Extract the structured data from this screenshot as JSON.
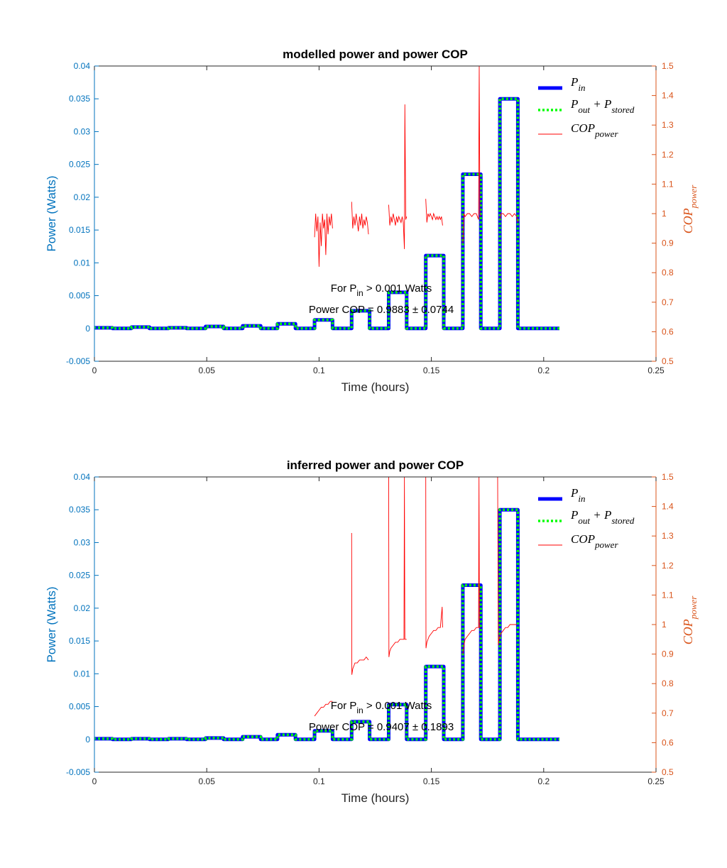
{
  "figure": {
    "colors": {
      "p_in": "#0000FF",
      "p_out_stored": "#00FF00",
      "cop": "#FF0000",
      "left_axis": "#0072BD",
      "right_axis": "#D95319",
      "x_axis": "#262626"
    }
  },
  "chart_data": [
    {
      "type": "line",
      "title": "modelled power and power COP",
      "xlabel": "Time (hours)",
      "ylabel_left": "Power (Watts)",
      "ylabel_right": {
        "base": "COP",
        "sub": "power"
      },
      "xlim": [
        0,
        0.25
      ],
      "ylim_left": [
        -0.005,
        0.04
      ],
      "ylim_right": [
        0.5,
        1.5
      ],
      "x_ticks": [
        "0",
        "0.05",
        "0.1",
        "0.15",
        "0.2",
        "0.25"
      ],
      "y_left_ticks": [
        "-0.005",
        "0",
        "0.005",
        "0.01",
        "0.015",
        "0.02",
        "0.025",
        "0.03",
        "0.035",
        "0.04"
      ],
      "y_right_ticks": [
        "0.5",
        "0.6",
        "0.7",
        "0.8",
        "0.9",
        "1",
        "1.1",
        "1.2",
        "1.3",
        "1.4",
        "1.5"
      ],
      "legend": {
        "placement": "top-right",
        "entries": [
          {
            "series": "p_in",
            "parts": [
              [
                "P",
                ""
              ],
              [
                "in",
                "sub"
              ]
            ]
          },
          {
            "series": "p_out_stored",
            "parts": [
              [
                "P",
                ""
              ],
              [
                "out",
                "sub"
              ],
              [
                " + P",
                ""
              ],
              [
                "stored",
                "sub"
              ]
            ]
          },
          {
            "series": "cop",
            "parts": [
              [
                "COP",
                ""
              ],
              [
                "power",
                "sub"
              ]
            ]
          }
        ]
      },
      "annotation": {
        "line1": {
          "pre": "For P",
          "sub": "in",
          "post": " > 0.001 Watts"
        },
        "line2": "Power COP = 0.9883 ± 0.0744"
      },
      "pulses": [
        {
          "start": 0.0,
          "end": 0.0,
          "level": 0.0
        },
        {
          "start": 0.0,
          "end": 0.008,
          "level": 0.0001
        },
        {
          "start": 0.0165,
          "end": 0.0245,
          "level": 0.0002
        },
        {
          "start": 0.033,
          "end": 0.041,
          "level": 0.0001
        },
        {
          "start": 0.0495,
          "end": 0.0575,
          "level": 0.0003
        },
        {
          "start": 0.066,
          "end": 0.074,
          "level": 0.0004
        },
        {
          "start": 0.0815,
          "end": 0.0895,
          "level": 0.0007
        },
        {
          "start": 0.098,
          "end": 0.106,
          "level": 0.0013
        },
        {
          "start": 0.1145,
          "end": 0.1225,
          "level": 0.0027
        },
        {
          "start": 0.131,
          "end": 0.139,
          "level": 0.0055
        },
        {
          "start": 0.1475,
          "end": 0.1555,
          "level": 0.0111
        },
        {
          "start": 0.164,
          "end": 0.172,
          "level": 0.0235
        },
        {
          "start": 0.1805,
          "end": 0.1885,
          "level": 0.035
        }
      ],
      "x_end": 0.207,
      "cop_segments": [
        {
          "x": [
            0.098,
            0.0985,
            0.099,
            0.0995,
            0.1,
            0.1005,
            0.101,
            0.1015,
            0.102,
            0.1025,
            0.103,
            0.1035,
            0.104,
            0.1045,
            0.105,
            0.1055,
            0.106
          ],
          "y": [
            0.92,
            1.0,
            0.94,
            0.99,
            0.82,
            0.97,
            0.89,
            1.0,
            0.95,
            0.98,
            0.86,
            1.0,
            0.93,
            0.99,
            0.96,
            1.0,
            0.95
          ]
        },
        {
          "x": [
            0.1145,
            0.115,
            0.1155,
            0.116,
            0.1165,
            0.117,
            0.1175,
            0.118,
            0.1185,
            0.119,
            0.1195,
            0.12,
            0.1205,
            0.121,
            0.1215,
            0.122
          ],
          "y": [
            1.04,
            0.95,
            0.99,
            0.96,
            1.0,
            0.97,
            0.94,
            0.99,
            0.96,
            1.0,
            0.95,
            0.98,
            0.96,
            0.99,
            0.97,
            0.93
          ]
        },
        {
          "x": [
            0.131,
            0.1315,
            0.132,
            0.1325,
            0.133,
            0.1335,
            0.134,
            0.1345,
            0.135,
            0.1355,
            0.136,
            0.1365,
            0.137,
            0.1375,
            0.138,
            0.1382,
            0.1386,
            0.139
          ],
          "y": [
            1.03,
            0.96,
            0.99,
            0.97,
            1.0,
            0.98,
            0.96,
            0.99,
            0.97,
            0.99,
            0.98,
            0.97,
            0.99,
            0.97,
            0.88,
            1.37,
            0.98,
            0.99
          ]
        },
        {
          "x": [
            0.1475,
            0.148,
            0.1485,
            0.149,
            0.1495,
            0.15,
            0.1505,
            0.151,
            0.1515,
            0.152,
            0.1525,
            0.153,
            0.1535,
            0.154,
            0.1545,
            0.155
          ],
          "y": [
            1.05,
            0.97,
            1.0,
            0.99,
            1.0,
            0.99,
            0.98,
            1.0,
            0.99,
            0.98,
            0.99,
            0.98,
            0.99,
            0.98,
            0.99,
            0.96
          ]
        },
        {
          "x": [
            0.164,
            0.1645,
            0.165,
            0.166,
            0.167,
            0.168,
            0.169,
            0.17,
            0.1705,
            0.171,
            0.1713,
            0.1716,
            0.172
          ],
          "y": [
            0.9,
            1.0,
            0.99,
            1.0,
            1.0,
            0.99,
            1.0,
            1.0,
            0.99,
            0.98,
            1.5,
            1.0,
            0.99
          ]
        },
        {
          "x": [
            0.1805,
            0.181,
            0.182,
            0.183,
            0.184,
            0.185,
            0.186,
            0.187,
            0.188,
            0.1885
          ],
          "y": [
            0.98,
            1.0,
            1.0,
            0.99,
            1.0,
            1.0,
            0.99,
            1.0,
            0.99,
            0.97
          ]
        }
      ]
    },
    {
      "type": "line",
      "title": "inferred power and power COP",
      "xlabel": "Time (hours)",
      "ylabel_left": "Power (Watts)",
      "ylabel_right": {
        "base": "COP",
        "sub": "power"
      },
      "xlim": [
        0,
        0.25
      ],
      "ylim_left": [
        -0.005,
        0.04
      ],
      "ylim_right": [
        0.5,
        1.5
      ],
      "x_ticks": [
        "0",
        "0.05",
        "0.1",
        "0.15",
        "0.2",
        "0.25"
      ],
      "y_left_ticks": [
        "-0.005",
        "0",
        "0.005",
        "0.01",
        "0.015",
        "0.02",
        "0.025",
        "0.03",
        "0.035",
        "0.04"
      ],
      "y_right_ticks": [
        "0.5",
        "0.6",
        "0.7",
        "0.8",
        "0.9",
        "1",
        "1.1",
        "1.2",
        "1.3",
        "1.4",
        "1.5"
      ],
      "legend": {
        "placement": "top-right",
        "entries": [
          {
            "series": "p_in",
            "parts": [
              [
                "P",
                ""
              ],
              [
                "in",
                "sub"
              ]
            ]
          },
          {
            "series": "p_out_stored",
            "parts": [
              [
                "P",
                ""
              ],
              [
                "out",
                "sub"
              ],
              [
                " + P",
                ""
              ],
              [
                "stored",
                "sub"
              ]
            ]
          },
          {
            "series": "cop",
            "parts": [
              [
                "COP",
                ""
              ],
              [
                "power",
                "sub"
              ]
            ]
          }
        ]
      },
      "annotation": {
        "line1": {
          "pre": "For P",
          "sub": "in",
          "post": " > 0.001 Watts"
        },
        "line2": "Power COP = 0.9407 ± 0.1893"
      },
      "pulses": [
        {
          "start": 0.0,
          "end": 0.008,
          "level": 0.0001
        },
        {
          "start": 0.0165,
          "end": 0.0245,
          "level": 0.0001
        },
        {
          "start": 0.033,
          "end": 0.041,
          "level": 0.0001
        },
        {
          "start": 0.0495,
          "end": 0.0575,
          "level": 0.0002
        },
        {
          "start": 0.066,
          "end": 0.074,
          "level": 0.0004
        },
        {
          "start": 0.0815,
          "end": 0.0895,
          "level": 0.0007
        },
        {
          "start": 0.098,
          "end": 0.106,
          "level": 0.0013
        },
        {
          "start": 0.1145,
          "end": 0.1225,
          "level": 0.0027
        },
        {
          "start": 0.131,
          "end": 0.139,
          "level": 0.0053
        },
        {
          "start": 0.1475,
          "end": 0.1555,
          "level": 0.0111
        },
        {
          "start": 0.164,
          "end": 0.172,
          "level": 0.0235
        },
        {
          "start": 0.1805,
          "end": 0.1885,
          "level": 0.035
        }
      ],
      "x_end": 0.207,
      "cop_segments": [
        {
          "x": [
            0.098,
            0.099,
            0.1,
            0.101,
            0.102,
            0.103,
            0.104,
            0.105,
            0.106
          ],
          "y": [
            0.69,
            0.7,
            0.71,
            0.72,
            0.72,
            0.73,
            0.73,
            0.74,
            0.74
          ]
        },
        {
          "x": [
            0.1145,
            0.1146,
            0.115,
            0.1155,
            0.116,
            0.117,
            0.118,
            0.119,
            0.12,
            0.121,
            0.122
          ],
          "y": [
            1.31,
            0.83,
            0.85,
            0.86,
            0.87,
            0.87,
            0.88,
            0.88,
            0.88,
            0.89,
            0.88
          ]
        },
        {
          "x": [
            0.131,
            0.1311,
            0.1315,
            0.132,
            0.133,
            0.134,
            0.135,
            0.136,
            0.137,
            0.1378,
            0.138,
            0.1382,
            0.139
          ],
          "y": [
            1.5,
            0.89,
            0.91,
            0.92,
            0.93,
            0.94,
            0.94,
            0.95,
            0.95,
            0.95,
            1.5,
            0.95,
            0.95
          ]
        },
        {
          "x": [
            0.1475,
            0.1476,
            0.148,
            0.149,
            0.15,
            0.151,
            0.152,
            0.153,
            0.154,
            0.1548,
            0.155
          ],
          "y": [
            1.5,
            0.92,
            0.94,
            0.96,
            0.97,
            0.98,
            0.98,
            0.99,
            0.99,
            1.06,
            0.99
          ]
        },
        {
          "x": [
            0.164,
            0.1645,
            0.165,
            0.166,
            0.167,
            0.168,
            0.169,
            0.17,
            0.171,
            0.1712,
            0.1714,
            0.172
          ],
          "y": [
            0.9,
            0.93,
            0.95,
            0.96,
            0.97,
            0.98,
            0.98,
            0.99,
            0.99,
            1.5,
            0.99,
            0.99
          ]
        },
        {
          "x": [
            0.1795,
            0.1798,
            0.18,
            0.181,
            0.182,
            0.183,
            0.184,
            0.185,
            0.186,
            0.187,
            0.188
          ],
          "y": [
            1.5,
            0.93,
            0.95,
            0.97,
            0.98,
            0.99,
            0.99,
            1.0,
            1.0,
            1.0,
            1.0
          ]
        }
      ]
    }
  ]
}
